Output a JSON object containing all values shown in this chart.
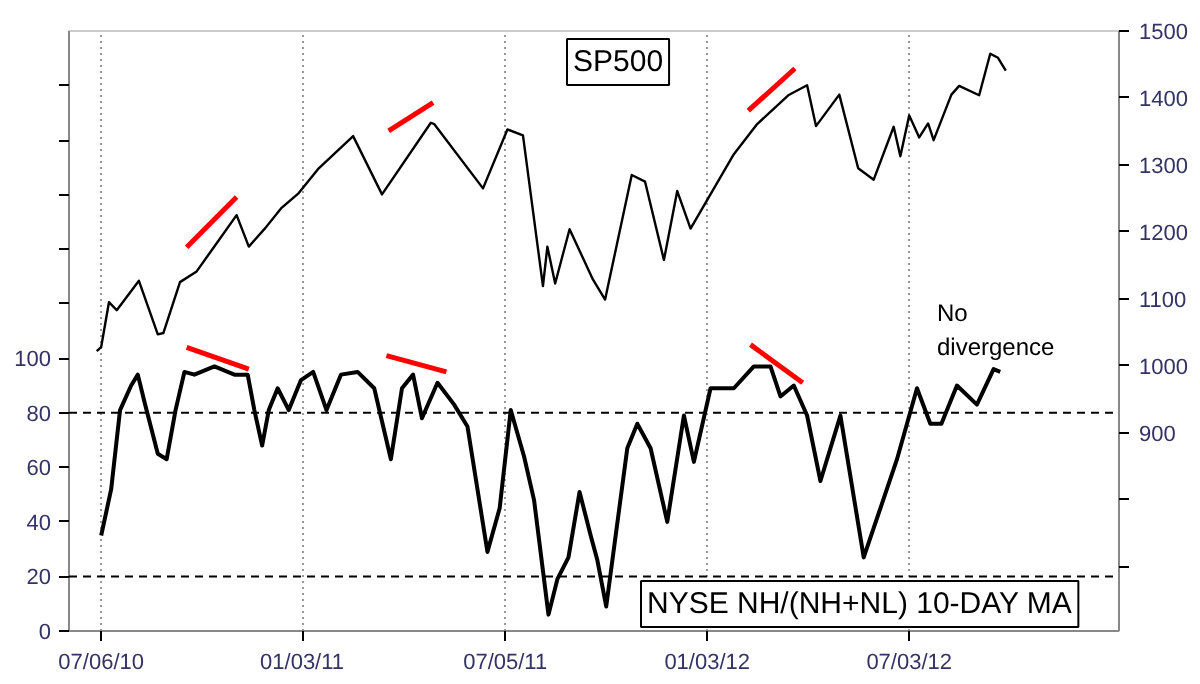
{
  "chart_data": {
    "type": "line",
    "annotations": [
      "No\ndivergence"
    ],
    "xlim": [
      "2010-06-07",
      "2013-01-08"
    ],
    "xticks": [
      {
        "value": "2010-07-06",
        "label": "07/06/10"
      },
      {
        "value": "2011-01-03",
        "label": "01/03/11"
      },
      {
        "value": "2011-07-05",
        "label": "07/05/11"
      },
      {
        "value": "2012-01-03",
        "label": "01/03/12"
      },
      {
        "value": "2012-07-03",
        "label": "07/03/12"
      }
    ],
    "ylim": [
      0,
      220
    ],
    "yticks": [
      0,
      20,
      40,
      60,
      80,
      100,
      {
        "value": 120,
        "label": null
      },
      {
        "value": 140,
        "label": null
      },
      {
        "value": 160,
        "label": null
      },
      {
        "value": 180,
        "label": null
      },
      {
        "value": 200,
        "label": null
      }
    ],
    "y2lim": [
      604,
      1500
    ],
    "y2ticks": [
      {
        "value": 700,
        "label": null
      },
      {
        "value": 800,
        "label": null
      },
      900,
      1000,
      1100,
      1200,
      1300,
      1400,
      1500
    ],
    "grid": "x",
    "ref_lines": [
      {
        "axis": "y",
        "value": 80,
        "line_style": "dashed",
        "color": "#000000"
      },
      {
        "axis": "y",
        "value": 20,
        "line_style": "dashed",
        "color": "#000000"
      }
    ],
    "series": [
      {
        "name": "SP500",
        "color": "#000000",
        "axis": "y2",
        "x": [
          "2010-07-02",
          "2010-07-06",
          "2010-07-13",
          "2010-07-20",
          "2010-08-09",
          "2010-08-26",
          "2010-08-31",
          "2010-09-15",
          "2010-09-30",
          "2010-10-15",
          "2010-11-05",
          "2010-11-16",
          "2010-12-01",
          "2010-12-15",
          "2010-12-31",
          "2011-01-18",
          "2011-02-18",
          "2011-03-16",
          "2011-04-29",
          "2011-05-02",
          "2011-06-15",
          "2011-07-07",
          "2011-07-21",
          "2011-08-08",
          "2011-08-12",
          "2011-08-19",
          "2011-09-01",
          "2011-09-22",
          "2011-10-03",
          "2011-10-27",
          "2011-11-08",
          "2011-11-25",
          "2011-12-07",
          "2011-12-19",
          "2012-01-27",
          "2012-02-17",
          "2012-03-16",
          "2012-04-02",
          "2012-04-10",
          "2012-05-01",
          "2012-05-18",
          "2012-06-01",
          "2012-06-19",
          "2012-06-25",
          "2012-07-03",
          "2012-07-12",
          "2012-07-20",
          "2012-07-25",
          "2012-08-10",
          "2012-08-17",
          "2012-09-04",
          "2012-09-14",
          "2012-09-21",
          "2012-09-28"
        ],
        "values": [
          1022,
          1028,
          1095,
          1083,
          1127,
          1047,
          1049,
          1125,
          1141,
          1176,
          1225,
          1178,
          1206,
          1235,
          1258,
          1295,
          1343,
          1256,
          1363,
          1361,
          1265,
          1353,
          1344,
          1119,
          1178,
          1123,
          1204,
          1129,
          1099,
          1285,
          1275,
          1158,
          1261,
          1205,
          1316,
          1361,
          1404,
          1419,
          1358,
          1405,
          1295,
          1278,
          1357,
          1313,
          1374,
          1341,
          1362,
          1337,
          1405,
          1418,
          1404,
          1466,
          1460,
          1441
        ]
      },
      {
        "name": "NYSE NH/(NH+NL) 10-DAY MA",
        "color": "#000000",
        "axis": "y",
        "x": [
          "2010-07-06",
          "2010-07-15",
          "2010-07-23",
          "2010-08-02",
          "2010-08-08",
          "2010-08-14",
          "2010-08-26",
          "2010-09-03",
          "2010-09-11",
          "2010-09-19",
          "2010-09-28",
          "2010-10-16",
          "2010-11-03",
          "2010-11-15",
          "2010-11-21",
          "2010-11-28",
          "2010-12-04",
          "2010-12-12",
          "2010-12-22",
          "2011-01-02",
          "2011-01-13",
          "2011-01-25",
          "2011-02-07",
          "2011-02-22",
          "2011-03-09",
          "2011-03-24",
          "2011-04-03",
          "2011-04-13",
          "2011-04-21",
          "2011-05-05",
          "2011-05-20",
          "2011-06-01",
          "2011-06-19",
          "2011-06-30",
          "2011-07-10",
          "2011-07-22",
          "2011-07-31",
          "2011-08-13",
          "2011-08-21",
          "2011-08-31",
          "2011-09-10",
          "2011-09-20",
          "2011-09-26",
          "2011-10-04",
          "2011-10-23",
          "2011-11-01",
          "2011-11-13",
          "2011-11-28",
          "2011-12-13",
          "2011-12-22",
          "2012-01-06",
          "2012-01-27",
          "2012-02-14",
          "2012-02-29",
          "2012-03-09",
          "2012-03-21",
          "2012-04-02",
          "2012-04-14",
          "2012-05-02",
          "2012-05-23",
          "2012-06-07",
          "2012-06-22",
          "2012-07-10",
          "2012-07-22",
          "2012-08-01",
          "2012-08-15",
          "2012-09-02",
          "2012-09-17",
          "2012-09-23"
        ],
        "values": [
          35,
          52,
          81,
          90,
          94,
          84,
          65,
          63,
          81,
          95,
          94,
          97,
          94,
          94,
          81,
          68,
          81,
          89,
          81,
          92,
          95,
          81,
          94,
          95,
          89,
          63,
          89,
          94,
          78,
          91,
          83,
          75,
          29,
          45,
          81,
          64,
          48,
          6,
          19,
          27,
          51,
          35,
          26,
          9,
          67,
          76,
          67,
          40,
          79,
          62,
          89,
          89,
          97,
          97,
          86,
          90,
          79,
          55,
          79,
          27,
          45,
          63,
          89,
          76,
          76,
          90,
          83,
          96,
          95
        ]
      },
      {
        "color": "#ff0000",
        "axis": "y2",
        "x": [
          "2010-09-21",
          "2010-11-05"
        ],
        "values": [
          1177,
          1252
        ]
      },
      {
        "color": "#ff0000",
        "axis": "y2",
        "x": [
          "2011-03-22",
          "2011-05-01"
        ],
        "values": [
          1351,
          1393
        ]
      },
      {
        "color": "#ff0000",
        "axis": "y2",
        "x": [
          "2012-02-09",
          "2012-03-22"
        ],
        "values": [
          1381,
          1444
        ]
      },
      {
        "color": "#ff0000",
        "axis": "y",
        "x": [
          "2010-09-21",
          "2010-11-16"
        ],
        "values": [
          104,
          96
        ]
      },
      {
        "color": "#ff0000",
        "axis": "y",
        "x": [
          "2011-03-20",
          "2011-05-13"
        ],
        "values": [
          101,
          95
        ]
      },
      {
        "color": "#ff0000",
        "axis": "y",
        "x": [
          "2012-02-11",
          "2012-03-29"
        ],
        "values": [
          105,
          91
        ]
      }
    ]
  }
}
